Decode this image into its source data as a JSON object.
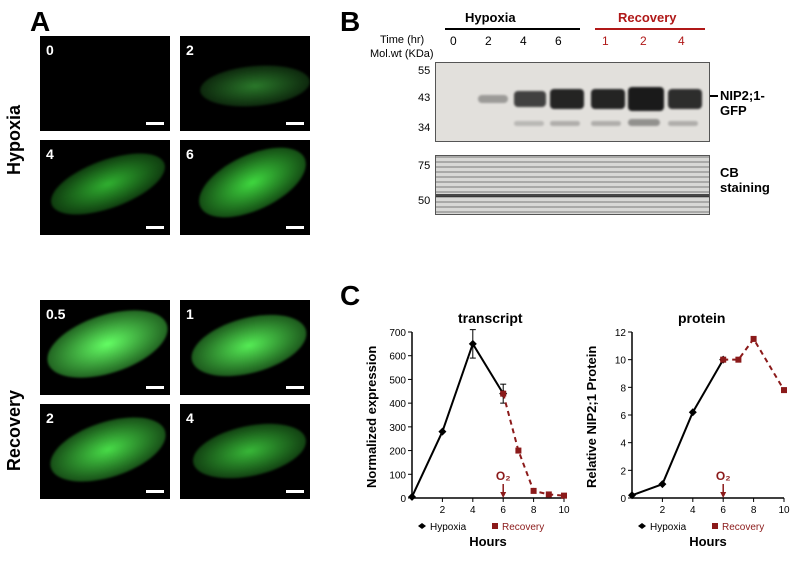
{
  "panelA": {
    "label": "A",
    "rows": [
      {
        "name": "Hypoxia",
        "timepoints": [
          "0",
          "2",
          "4",
          "6"
        ]
      },
      {
        "name": "Recovery",
        "timepoints": [
          "0.5",
          "1",
          "2",
          "4"
        ]
      }
    ],
    "rootIntensity": {
      "0": 0.05,
      "2": 0.35,
      "4": 0.55,
      "6": 0.7,
      "0.5": 0.95,
      "1": 0.9,
      "2r": 0.85,
      "4r": 0.6
    },
    "imageSize": {
      "w": 130,
      "h": 95
    },
    "bg": "#000000",
    "text": "#ffffff"
  },
  "panelB": {
    "label": "B",
    "groups": [
      {
        "name": "Hypoxia",
        "color": "#000000",
        "times": [
          "0",
          "2",
          "4",
          "6"
        ]
      },
      {
        "name": "Recovery",
        "color": "#b01818",
        "times": [
          "1",
          "2",
          "4"
        ]
      }
    ],
    "timeRowLabel": "Time (hr)",
    "mwRowLabel": "Mol.wt (KDa)",
    "mwTicks": [
      "55",
      "43",
      "34"
    ],
    "sideLabel": "NIP2;1-GFP",
    "cbLabel": "CB\nstaining",
    "cbMw": [
      "75",
      "50"
    ],
    "bandIntensities": [
      0.0,
      0.3,
      0.75,
      0.95,
      0.95,
      1.0,
      0.85
    ],
    "blotBg": "#d7d5d0"
  },
  "panelC": {
    "label": "C",
    "charts": [
      {
        "title": "transcript",
        "ylabel": "Normalized expression",
        "xlabel": "Hours",
        "ylim": [
          0,
          700
        ],
        "ytick": 100,
        "xlim": [
          0,
          10
        ],
        "xtick": 2,
        "hypoxia": {
          "color": "#000000",
          "dash": false,
          "points": [
            [
              0,
              5
            ],
            [
              2,
              280
            ],
            [
              4,
              650
            ],
            [
              6,
              440
            ]
          ],
          "err": [
            [
              4,
              60
            ],
            [
              6,
              40
            ]
          ]
        },
        "recovery": {
          "color": "#8b1a1a",
          "dash": true,
          "points": [
            [
              6,
              440
            ],
            [
              7,
              200
            ],
            [
              8,
              30
            ],
            [
              9,
              15
            ],
            [
              10,
              10
            ]
          ]
        },
        "o2": {
          "x": 6,
          "label": "O₂",
          "color": "#8b1a1a"
        }
      },
      {
        "title": "protein",
        "ylabel": "Relative NIP2;1 Protein",
        "xlabel": "Hours",
        "ylim": [
          0,
          12
        ],
        "ytick": 2,
        "xlim": [
          0,
          10
        ],
        "xtick": 2,
        "hypoxia": {
          "color": "#000000",
          "dash": false,
          "points": [
            [
              0,
              0.2
            ],
            [
              2,
              1
            ],
            [
              4,
              6.2
            ],
            [
              6,
              10
            ]
          ]
        },
        "recovery": {
          "color": "#8b1a1a",
          "dash": true,
          "points": [
            [
              6,
              10
            ],
            [
              7,
              10
            ],
            [
              8,
              11.5
            ],
            [
              10,
              7.8
            ]
          ]
        },
        "o2": {
          "x": 6,
          "label": "O₂",
          "color": "#8b1a1a"
        }
      }
    ],
    "legend": {
      "hypoxia": "Hypoxia",
      "recovery": "Recovery"
    }
  }
}
